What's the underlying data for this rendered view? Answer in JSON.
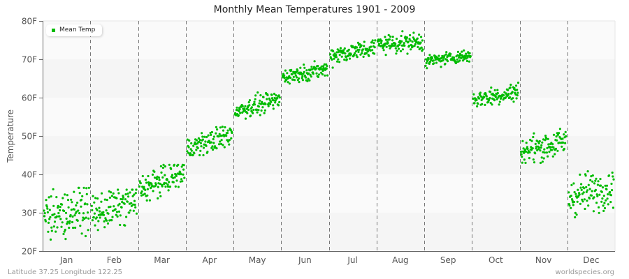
{
  "chart_data": {
    "type": "scatter",
    "title": "Monthly Mean Temperatures 1901 - 2009",
    "xlabel": "",
    "ylabel": "Temperature",
    "ylim": [
      20,
      80
    ],
    "yticks": [
      "20F",
      "30F",
      "40F",
      "50F",
      "60F",
      "70F",
      "80F"
    ],
    "ytick_values": [
      20,
      30,
      40,
      50,
      60,
      70,
      80
    ],
    "categories": [
      "Jan",
      "Feb",
      "Mar",
      "Apr",
      "May",
      "Jun",
      "Jul",
      "Aug",
      "Sep",
      "Oct",
      "Nov",
      "Dec"
    ],
    "grid": {
      "horizontal_bands": true,
      "vertical_dashed_month_separators": true
    },
    "legend": {
      "position": "top-left",
      "entries": [
        "Mean Temp"
      ]
    },
    "series": [
      {
        "name": "Mean Temp",
        "color": "#00bb00",
        "points_per_month": 109,
        "monthly_distribution": [
          {
            "month": "Jan",
            "start_mean": 28.5,
            "end_mean": 31.5,
            "spread": 2.8,
            "min": 23,
            "max": 36.5
          },
          {
            "month": "Feb",
            "start_mean": 29.5,
            "end_mean": 33.0,
            "spread": 2.4,
            "min": 25.5,
            "max": 36
          },
          {
            "month": "Mar",
            "start_mean": 36.0,
            "end_mean": 40.5,
            "spread": 1.8,
            "min": 32,
            "max": 42.5
          },
          {
            "month": "Apr",
            "start_mean": 46.5,
            "end_mean": 50.5,
            "spread": 1.5,
            "min": 45,
            "max": 52.5
          },
          {
            "month": "May",
            "start_mean": 56.5,
            "end_mean": 59.5,
            "spread": 1.2,
            "min": 54,
            "max": 62
          },
          {
            "month": "Jun",
            "start_mean": 65.5,
            "end_mean": 67.5,
            "spread": 1.0,
            "min": 63.5,
            "max": 69.5
          },
          {
            "month": "Jul",
            "start_mean": 71.0,
            "end_mean": 73.0,
            "spread": 1.2,
            "min": 67,
            "max": 75.5
          },
          {
            "month": "Aug",
            "start_mean": 74.0,
            "end_mean": 74.5,
            "spread": 1.2,
            "min": 71,
            "max": 78.5
          },
          {
            "month": "Sep",
            "start_mean": 69.5,
            "end_mean": 71.0,
            "spread": 0.8,
            "min": 67,
            "max": 73
          },
          {
            "month": "Oct",
            "start_mean": 59.5,
            "end_mean": 61.5,
            "spread": 1.2,
            "min": 56.5,
            "max": 65.5
          },
          {
            "month": "Nov",
            "start_mean": 46.0,
            "end_mean": 48.5,
            "spread": 1.8,
            "min": 43,
            "max": 53.5
          },
          {
            "month": "Dec",
            "start_mean": 34.0,
            "end_mean": 37.0,
            "spread": 2.5,
            "min": 27.5,
            "max": 41
          }
        ]
      }
    ]
  },
  "legend": {
    "label": "Mean Temp",
    "color": "#00bb00"
  },
  "footer": {
    "location": "Latitude 37.25 Longitude 122.25",
    "source": "worldspecies.org"
  }
}
